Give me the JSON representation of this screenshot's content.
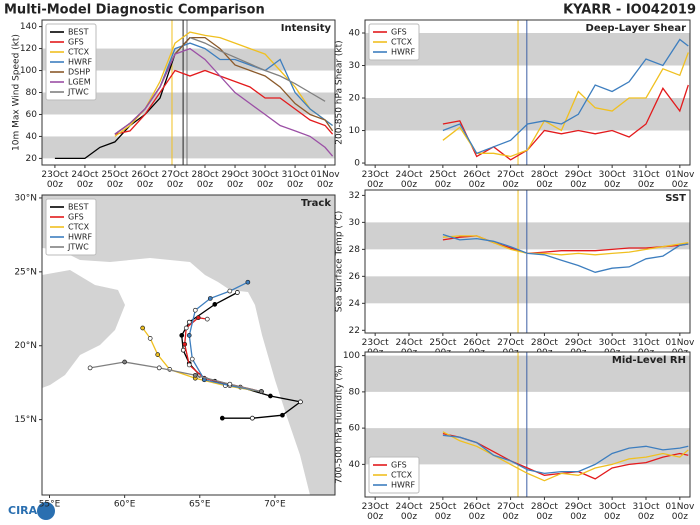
{
  "title": "Multi-Model Diagnostic Comparison",
  "storm_id": "KYARR - IO042019",
  "logo": "CIRA",
  "chart_data": [
    {
      "type": "line",
      "title": "Intensity",
      "y_label": "10m Max Wind Speed (kt)",
      "x": [
        0,
        0.5,
        1,
        1.5,
        2,
        2.5,
        3,
        3.5,
        4,
        4.5,
        5,
        5.5,
        6,
        6.5,
        7,
        7.5,
        8,
        8.5,
        9,
        9.25
      ],
      "xlim": [
        -0.43,
        9.33
      ],
      "xticks": [
        {
          "value": 0,
          "label": "23Oct\n00z"
        },
        {
          "value": 1,
          "label": "24Oct\n00z"
        },
        {
          "value": 2,
          "label": "25Oct\n00z"
        },
        {
          "value": 3,
          "label": "26Oct\n00z"
        },
        {
          "value": 4,
          "label": "27Oct\n00z"
        },
        {
          "value": 5,
          "label": "28Oct\n00z"
        },
        {
          "value": 6,
          "label": "29Oct\n00z"
        },
        {
          "value": 7,
          "label": "30Oct\n00z"
        },
        {
          "value": 8,
          "label": "31Oct\n00z"
        },
        {
          "value": 9,
          "label": "01Nov\n00z"
        }
      ],
      "ylim": [
        14,
        146
      ],
      "yticks": [
        20,
        40,
        60,
        80,
        100,
        120,
        140
      ],
      "bands": [
        [
          100,
          120
        ],
        [
          60,
          80
        ],
        [
          20,
          40
        ]
      ],
      "vlines": [
        {
          "x": 3.9,
          "color": "#f0c020"
        },
        {
          "x": 4.27,
          "color": "#222222"
        },
        {
          "x": 4.4,
          "color": "#777777"
        }
      ],
      "legend": "upper left",
      "series": [
        {
          "name": "BEST",
          "color": "#000000",
          "values": [
            20,
            20,
            20,
            30,
            35,
            50,
            60,
            75,
            115,
            130,
            null,
            null,
            null,
            null,
            null,
            null,
            null,
            null,
            null,
            null
          ]
        },
        {
          "name": "GFS",
          "color": "#e31a1c",
          "values": [
            null,
            null,
            null,
            null,
            42,
            45,
            60,
            80,
            100,
            95,
            100,
            95,
            90,
            85,
            75,
            75,
            65,
            55,
            50,
            42
          ]
        },
        {
          "name": "CTCX",
          "color": "#f0c020",
          "values": [
            null,
            null,
            null,
            null,
            40,
            50,
            65,
            90,
            125,
            135,
            132,
            130,
            125,
            120,
            115,
            100,
            85,
            65,
            55,
            50
          ]
        },
        {
          "name": "HWRF",
          "color": "#3d7ebf",
          "values": [
            null,
            null,
            null,
            null,
            42,
            52,
            65,
            85,
            120,
            125,
            120,
            110,
            110,
            105,
            100,
            110,
            80,
            65,
            55,
            50
          ]
        },
        {
          "name": "DSHP",
          "color": "#8b5a2b",
          "values": [
            null,
            null,
            null,
            null,
            42,
            52,
            65,
            85,
            115,
            130,
            130,
            120,
            105,
            100,
            95,
            85,
            70,
            60,
            55,
            45
          ]
        },
        {
          "name": "LGEM",
          "color": "#9b4fa5",
          "values": [
            null,
            null,
            null,
            null,
            42,
            52,
            65,
            85,
            115,
            120,
            110,
            95,
            80,
            70,
            60,
            50,
            45,
            40,
            30,
            22
          ]
        },
        {
          "name": "JTWC",
          "color": "#808080",
          "values": [
            null,
            null,
            null,
            null,
            null,
            null,
            null,
            null,
            null,
            130,
            125,
            118,
            112,
            106,
            100,
            95,
            88,
            80,
            72,
            null
          ]
        }
      ]
    },
    {
      "type": "track",
      "title": "Track",
      "xlim": [
        54.5,
        74.0
      ],
      "xticks": [
        {
          "value": 55,
          "label": "55°E"
        },
        {
          "value": 60,
          "label": "60°E"
        },
        {
          "value": 65,
          "label": "65°E"
        },
        {
          "value": 70,
          "label": "70°E"
        }
      ],
      "ylim": [
        9.9,
        30.2
      ],
      "yticks": [
        {
          "value": 15,
          "label": "15°N"
        },
        {
          "value": 20,
          "label": "20°N"
        },
        {
          "value": 25,
          "label": "25°N"
        },
        {
          "value": 30,
          "label": "30°N"
        }
      ],
      "legend": "upper left",
      "series": [
        {
          "name": "BEST",
          "color": "#000000",
          "x": [
            66.5,
            68.5,
            70.5,
            71.7,
            69.7,
            67.7,
            66.0,
            65.0,
            64.3,
            63.9,
            63.8,
            64.3,
            66.0,
            67.5
          ],
          "values": [
            15.1,
            15.1,
            15.3,
            16.2,
            16.6,
            17.2,
            17.6,
            18.0,
            18.8,
            19.7,
            20.7,
            21.6,
            22.8,
            23.6
          ]
        },
        {
          "name": "GFS",
          "color": "#e31a1c",
          "x": [
            69.1,
            67.0,
            65.3,
            64.3,
            64.0,
            64.1,
            64.9,
            65.5
          ],
          "values": [
            16.9,
            17.4,
            17.8,
            18.7,
            20.1,
            21.2,
            21.9,
            21.8
          ]
        },
        {
          "name": "CTCX",
          "color": "#f0c020",
          "x": [
            69.1,
            66.7,
            64.7,
            63.0,
            62.2,
            61.7,
            61.2
          ],
          "values": [
            16.9,
            17.3,
            17.8,
            18.4,
            19.4,
            20.5,
            21.2
          ]
        },
        {
          "name": "HWRF",
          "color": "#3d7ebf",
          "x": [
            69.1,
            67.0,
            65.3,
            64.5,
            64.3,
            64.7,
            65.7,
            67.0,
            68.2
          ],
          "values": [
            16.9,
            17.3,
            17.7,
            19.1,
            20.7,
            22.4,
            23.2,
            23.7,
            24.3
          ]
        },
        {
          "name": "JTWC",
          "color": "#808080",
          "x": [
            69.1,
            67.0,
            64.7,
            62.3,
            60.0,
            57.7
          ],
          "values": [
            16.9,
            17.4,
            18.0,
            18.5,
            18.9,
            18.5
          ]
        }
      ]
    },
    {
      "type": "line",
      "title": "Deep-Layer Shear",
      "y_label": "200-850 hPa Shear (kt)",
      "x": [
        0,
        0.5,
        1,
        1.5,
        2,
        2.5,
        3,
        3.5,
        4,
        4.5,
        5,
        5.5,
        6,
        6.5,
        7,
        7.5,
        8,
        8.5,
        9,
        9.25
      ],
      "xlim": [
        -0.3,
        9.3
      ],
      "xticks": [
        {
          "value": 0,
          "label": "23Oct\n00z"
        },
        {
          "value": 1,
          "label": "24Oct\n00z"
        },
        {
          "value": 2,
          "label": "25Oct\n00z"
        },
        {
          "value": 3,
          "label": "26Oct\n00z"
        },
        {
          "value": 4,
          "label": "27Oct\n00z"
        },
        {
          "value": 5,
          "label": "28Oct\n00z"
        },
        {
          "value": 6,
          "label": "29Oct\n00z"
        },
        {
          "value": 7,
          "label": "30Oct\n00z"
        },
        {
          "value": 8,
          "label": "31Oct\n00z"
        },
        {
          "value": 9,
          "label": "01Nov\n00z"
        }
      ],
      "ylim": [
        -0.6,
        44
      ],
      "yticks": [
        0,
        10,
        20,
        30,
        40
      ],
      "bands": [
        [
          30,
          40
        ],
        [
          10,
          20
        ]
      ],
      "vlines": [
        {
          "x": 4.22,
          "color": "#f0c020"
        },
        {
          "x": 4.48,
          "color": "#3d5fa5"
        }
      ],
      "legend": "upper left",
      "series": [
        {
          "name": "GFS",
          "color": "#e31a1c",
          "values": [
            null,
            null,
            null,
            null,
            12,
            13,
            2,
            5,
            1,
            4,
            10,
            9,
            10,
            9,
            10,
            8,
            12,
            23,
            16,
            24
          ]
        },
        {
          "name": "CTCX",
          "color": "#f0c020",
          "values": [
            null,
            null,
            null,
            null,
            7,
            11,
            3,
            3,
            2,
            4,
            13,
            10,
            22,
            17,
            16,
            20,
            20,
            29,
            27,
            34
          ]
        },
        {
          "name": "HWRF",
          "color": "#3d7ebf",
          "values": [
            null,
            null,
            null,
            null,
            10,
            12,
            3,
            5,
            7,
            12,
            13,
            12,
            15,
            24,
            22,
            25,
            32,
            30,
            38,
            36
          ]
        }
      ]
    },
    {
      "type": "line",
      "title": "SST",
      "y_label": "Sea Surface Temp (°C)",
      "x": [
        0,
        0.5,
        1,
        1.5,
        2,
        2.5,
        3,
        3.5,
        4,
        4.5,
        5,
        5.5,
        6,
        6.5,
        7,
        7.5,
        8,
        8.5,
        9,
        9.25
      ],
      "xlim": [
        -0.3,
        9.3
      ],
      "xticks": [
        {
          "value": 0,
          "label": "23Oct\n00z"
        },
        {
          "value": 1,
          "label": "24Oct\n00z"
        },
        {
          "value": 2,
          "label": "25Oct\n00z"
        },
        {
          "value": 3,
          "label": "26Oct\n00z"
        },
        {
          "value": 4,
          "label": "27Oct\n00z"
        },
        {
          "value": 5,
          "label": "28Oct\n00z"
        },
        {
          "value": 6,
          "label": "29Oct\n00z"
        },
        {
          "value": 7,
          "label": "30Oct\n00z"
        },
        {
          "value": 8,
          "label": "31Oct\n00z"
        },
        {
          "value": 9,
          "label": "01Nov\n00z"
        }
      ],
      "ylim": [
        21.8,
        32.4
      ],
      "yticks": [
        22,
        24,
        26,
        28,
        30,
        32
      ],
      "bands": [
        [
          28,
          30
        ],
        [
          24,
          26
        ]
      ],
      "vlines": [
        {
          "x": 4.22,
          "color": "#f0c020"
        },
        {
          "x": 4.48,
          "color": "#3d5fa5"
        }
      ],
      "series": [
        {
          "name": "GFS",
          "color": "#e31a1c",
          "values": [
            null,
            null,
            null,
            null,
            28.7,
            28.9,
            29.0,
            28.5,
            28.1,
            27.7,
            27.8,
            27.9,
            27.9,
            27.9,
            28.0,
            28.1,
            28.1,
            28.2,
            28.3,
            28.4
          ]
        },
        {
          "name": "CTCX",
          "color": "#f0c020",
          "values": [
            null,
            null,
            null,
            null,
            28.9,
            29.0,
            29.0,
            28.5,
            28.0,
            27.7,
            27.7,
            27.6,
            27.7,
            27.6,
            27.7,
            27.8,
            28.0,
            28.2,
            28.4,
            28.5
          ]
        },
        {
          "name": "HWRF",
          "color": "#3d7ebf",
          "values": [
            null,
            null,
            null,
            null,
            29.1,
            28.7,
            28.8,
            28.6,
            28.2,
            27.7,
            27.6,
            27.2,
            26.8,
            26.3,
            26.6,
            26.7,
            27.3,
            27.5,
            28.3,
            28.4
          ]
        }
      ]
    },
    {
      "type": "line",
      "title": "Mid-Level RH",
      "y_label": "700-500 hPa Humidity (%)",
      "x": [
        0,
        0.5,
        1,
        1.5,
        2,
        2.5,
        3,
        3.5,
        4,
        4.5,
        5,
        5.5,
        6,
        6.5,
        7,
        7.5,
        8,
        8.5,
        9,
        9.25
      ],
      "xlim": [
        -0.3,
        9.3
      ],
      "xticks": [
        {
          "value": 0,
          "label": "23Oct\n00z"
        },
        {
          "value": 1,
          "label": "24Oct\n00z"
        },
        {
          "value": 2,
          "label": "25Oct\n00z"
        },
        {
          "value": 3,
          "label": "26Oct\n00z"
        },
        {
          "value": 4,
          "label": "27Oct\n00z"
        },
        {
          "value": 5,
          "label": "28Oct\n00z"
        },
        {
          "value": 6,
          "label": "29Oct\n00z"
        },
        {
          "value": 7,
          "label": "30Oct\n00z"
        },
        {
          "value": 8,
          "label": "31Oct\n00z"
        },
        {
          "value": 9,
          "label": "01Nov\n00z"
        }
      ],
      "ylim": [
        22,
        102
      ],
      "yticks": [
        40,
        60,
        80,
        100
      ],
      "bands": [
        [
          80,
          100
        ],
        [
          40,
          60
        ]
      ],
      "vlines": [
        {
          "x": 4.22,
          "color": "#f0c020"
        },
        {
          "x": 4.48,
          "color": "#3d5fa5"
        }
      ],
      "legend": "lower left",
      "series": [
        {
          "name": "GFS",
          "color": "#e31a1c",
          "values": [
            null,
            null,
            null,
            null,
            57,
            55,
            52,
            47,
            42,
            38,
            34,
            35,
            36,
            32,
            38,
            40,
            41,
            44,
            46,
            45
          ]
        },
        {
          "name": "CTCX",
          "color": "#f0c020",
          "values": [
            null,
            null,
            null,
            null,
            58,
            53,
            50,
            45,
            40,
            35,
            31,
            35,
            34,
            38,
            40,
            43,
            44,
            46,
            44,
            48
          ]
        },
        {
          "name": "HWRF",
          "color": "#3d7ebf",
          "values": [
            null,
            null,
            null,
            null,
            56,
            55,
            52,
            45,
            42,
            37,
            35,
            36,
            36,
            40,
            46,
            49,
            50,
            48,
            49,
            50
          ]
        }
      ]
    }
  ]
}
